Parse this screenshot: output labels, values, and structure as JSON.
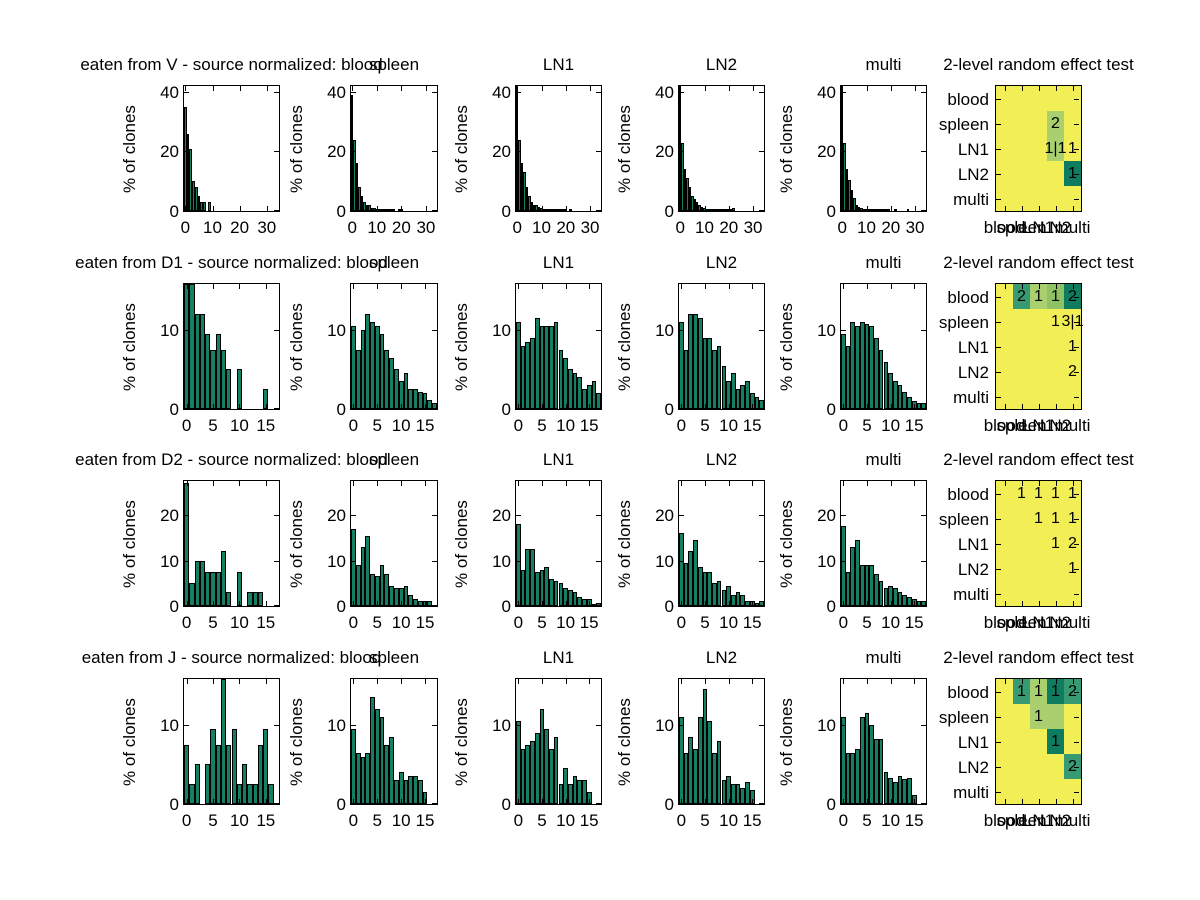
{
  "figure": {
    "col_titles": [
      "spleen",
      "LN1",
      "LN2",
      "multi"
    ],
    "heatmap_title": "2-level random effect test",
    "ylabel": "% of clones",
    "organs": [
      "blood",
      "spleen",
      "LN1",
      "LN2",
      "multi"
    ]
  },
  "colors": {
    "background": "#ffffff",
    "bar_fill": "#147f63",
    "bar_edge": "#000000",
    "heat_yellow": "#f2ee55",
    "heat_light": "#a9cf6e",
    "heat_light2": "#8fc264",
    "heat_mid": "#379a72",
    "heat_dark": "#0f7c5f"
  },
  "chart_data": {
    "type": "bar",
    "description": "4x6 grid: clone-size histograms (% of clones) per source organ and 2-level random effect test heatmaps",
    "rows": [
      {
        "sample": "V",
        "title": "eaten from V - source normalized: blood",
        "ylim": [
          0,
          42
        ],
        "yticks": [
          0,
          20,
          40
        ],
        "xticks": [
          0,
          10,
          20,
          30
        ],
        "nbins": 35,
        "histograms": [
          {
            "source": "blood",
            "values": [
              35,
              26,
              21,
              10,
              8,
              5,
              3,
              3,
              0,
              3
            ]
          },
          {
            "source": "spleen",
            "values": [
              39,
              24,
              16,
              8,
              5,
              3,
              2,
              2,
              1,
              1,
              0.6,
              0.5,
              0.4,
              0.3,
              0.3,
              0.2,
              0.2,
              0.2,
              0,
              0.3,
              0.4
            ]
          },
          {
            "source": "LN1",
            "values": [
              42,
              24,
              16,
              13,
              8,
              5,
              3,
              2,
              2,
              1.5,
              1,
              0.8,
              0.6,
              0.5,
              0.4,
              0.3,
              0.3,
              0.2,
              0.2,
              0.2,
              0.6,
              0,
              0.3
            ]
          },
          {
            "source": "LN2",
            "values": [
              42,
              23,
              14,
              11,
              8,
              5,
              4,
              3,
              2,
              1.5,
              1,
              0.8,
              0.6,
              0.5,
              0.4,
              0.6,
              0.3,
              0.2,
              0.2,
              0.3,
              0.5,
              0.8,
              1
            ]
          },
          {
            "source": "multi",
            "values": [
              42,
              23,
              14,
              10.5,
              7,
              4.5,
              2,
              1.5,
              1,
              0.8,
              0.5,
              0.4,
              0.3,
              0.2,
              0.2,
              0.2,
              0.1,
              0.1,
              0.1,
              0.1,
              0,
              0,
              0.2,
              0,
              0,
              0,
              0,
              0.3
            ]
          }
        ],
        "heatmap": {
          "cells": [
            {
              "r": 1,
              "c": 3,
              "bg": "light",
              "label": "2"
            },
            {
              "r": 2,
              "c": 3,
              "bg": "light",
              "label": "1|1"
            },
            {
              "r": 2,
              "c": 4,
              "bg": "",
              "label": "1"
            },
            {
              "r": 3,
              "c": 4,
              "bg": "dark",
              "label": "1"
            }
          ]
        }
      },
      {
        "sample": "D1",
        "title": "eaten from D1 - source normalized: blood",
        "ylim": [
          0,
          15.8
        ],
        "yticks": [
          0,
          10
        ],
        "xticks": [
          0,
          5,
          10,
          15
        ],
        "nbins": 18,
        "histograms": [
          {
            "source": "blood",
            "values": [
              17,
              17,
              12,
              12,
              9.5,
              7.5,
              9.5,
              7.5,
              5,
              0,
              5,
              0,
              0,
              0,
              0,
              2.5
            ]
          },
          {
            "source": "spleen",
            "values": [
              10.5,
              7.5,
              10,
              12,
              11,
              10.5,
              9.5,
              7.5,
              6.5,
              5,
              3.5,
              4.5,
              2.5,
              2.5,
              2.2,
              2,
              1.2,
              0.8
            ]
          },
          {
            "source": "LN1",
            "values": [
              11,
              8,
              8.5,
              9,
              11.5,
              10.5,
              10.5,
              10.5,
              11,
              7.5,
              6.5,
              5,
              4.5,
              4,
              2.5,
              3,
              3.5,
              2
            ]
          },
          {
            "source": "LN2",
            "values": [
              11,
              7.5,
              12,
              12,
              11.5,
              9,
              9,
              7.5,
              8,
              5.5,
              3.5,
              4.5,
              2.5,
              3,
              3.5,
              2,
              1.5,
              1.2
            ]
          },
          {
            "source": "multi",
            "values": [
              9.5,
              8,
              11,
              10.5,
              11,
              10.8,
              10.5,
              9,
              7.5,
              6,
              4.5,
              3.5,
              3,
              2.2,
              1.5,
              1,
              0.8,
              0.8
            ]
          }
        ],
        "heatmap": {
          "cells": [
            {
              "r": 0,
              "c": 1,
              "bg": "mid",
              "label": "2"
            },
            {
              "r": 0,
              "c": 2,
              "bg": "light",
              "label": "1"
            },
            {
              "r": 0,
              "c": 3,
              "bg": "light2",
              "label": "1"
            },
            {
              "r": 0,
              "c": 4,
              "bg": "dark",
              "label": "2"
            },
            {
              "r": 1,
              "c": 3,
              "bg": "",
              "label": "1"
            },
            {
              "r": 1,
              "c": 4,
              "bg": "",
              "label": "3|1"
            },
            {
              "r": 2,
              "c": 4,
              "bg": "",
              "label": "1"
            },
            {
              "r": 3,
              "c": 4,
              "bg": "",
              "label": "2"
            }
          ]
        }
      },
      {
        "sample": "D2",
        "title": "eaten from D2 - source normalized: blood",
        "ylim": [
          0,
          27.5
        ],
        "yticks": [
          0,
          10,
          20
        ],
        "xticks": [
          0,
          5,
          10,
          15
        ],
        "nbins": 18,
        "histograms": [
          {
            "source": "blood",
            "values": [
              27,
              5,
              10,
              10,
              7.5,
              7.5,
              7.5,
              12,
              3,
              0,
              7.5,
              0,
              3,
              3,
              3
            ]
          },
          {
            "source": "spleen",
            "values": [
              17,
              9,
              13,
              15.5,
              7,
              6.5,
              9,
              7,
              4.5,
              4,
              4,
              4.5,
              2.5,
              1.5,
              1.2,
              1.2,
              1
            ]
          },
          {
            "source": "LN1",
            "values": [
              18,
              8,
              12.5,
              12.5,
              7.5,
              8,
              8.5,
              6,
              5.5,
              5,
              4,
              3.5,
              3,
              2,
              1.5,
              1.5,
              0.5,
              0.7
            ]
          },
          {
            "source": "LN2",
            "values": [
              16,
              9.5,
              12,
              14.5,
              8.5,
              7.5,
              7.5,
              5,
              5.5,
              3.5,
              4.5,
              2.5,
              3,
              2.5,
              1.2,
              1,
              0.7,
              1
            ]
          },
          {
            "source": "multi",
            "values": [
              17.5,
              7.5,
              13,
              14.5,
              9,
              9,
              9,
              7,
              5.5,
              4,
              4.5,
              4,
              3,
              2.5,
              2,
              1.5,
              1,
              1
            ]
          }
        ],
        "heatmap": {
          "cells": [
            {
              "r": 0,
              "c": 1,
              "bg": "",
              "label": "1"
            },
            {
              "r": 0,
              "c": 2,
              "bg": "",
              "label": "1"
            },
            {
              "r": 0,
              "c": 3,
              "bg": "",
              "label": "1"
            },
            {
              "r": 0,
              "c": 4,
              "bg": "",
              "label": "1"
            },
            {
              "r": 1,
              "c": 2,
              "bg": "",
              "label": "1"
            },
            {
              "r": 1,
              "c": 3,
              "bg": "",
              "label": "1"
            },
            {
              "r": 1,
              "c": 4,
              "bg": "",
              "label": "1"
            },
            {
              "r": 2,
              "c": 3,
              "bg": "",
              "label": "1"
            },
            {
              "r": 2,
              "c": 4,
              "bg": "",
              "label": "2"
            },
            {
              "r": 3,
              "c": 4,
              "bg": "",
              "label": "1"
            }
          ]
        }
      },
      {
        "sample": "J",
        "title": "eaten from J - source normalized: blood",
        "ylim": [
          0,
          15.8
        ],
        "yticks": [
          0,
          10
        ],
        "xticks": [
          0,
          5,
          10,
          15
        ],
        "nbins": 18,
        "histograms": [
          {
            "source": "blood",
            "values": [
              7.5,
              2.5,
              5,
              0,
              5,
              9.5,
              7.5,
              15.8,
              7.5,
              9.5,
              2.5,
              5,
              2.5,
              2.5,
              7.5,
              9.5,
              2.5
            ]
          },
          {
            "source": "spleen",
            "values": [
              9.5,
              6.5,
              6,
              6.5,
              13.5,
              12,
              11,
              7.5,
              8.5,
              3,
              4,
              3,
              3.5,
              3.5,
              3,
              1.5
            ]
          },
          {
            "source": "LN1",
            "values": [
              10.5,
              7,
              7.5,
              8,
              9,
              12,
              9.5,
              7,
              8.5,
              2.5,
              4.5,
              2.5,
              3.5,
              3,
              3,
              1.5
            ]
          },
          {
            "source": "LN2",
            "values": [
              11,
              6.5,
              8.5,
              7,
              11,
              14.5,
              10.5,
              6.5,
              8,
              3,
              3.5,
              2.5,
              2.5,
              2,
              2.8,
              1.8
            ]
          },
          {
            "source": "multi",
            "values": [
              11,
              6.5,
              6.5,
              7,
              11,
              11.5,
              10,
              8.2,
              8.2,
              4,
              3.3,
              2.8,
              3.5,
              3.2,
              3.3,
              1.2
            ]
          }
        ],
        "heatmap": {
          "cells": [
            {
              "r": 0,
              "c": 1,
              "bg": "mid",
              "label": "1"
            },
            {
              "r": 0,
              "c": 2,
              "bg": "light",
              "label": "1"
            },
            {
              "r": 0,
              "c": 3,
              "bg": "dark",
              "label": "1"
            },
            {
              "r": 0,
              "c": 4,
              "bg": "mid",
              "label": "2"
            },
            {
              "r": 1,
              "c": 2,
              "bg": "light",
              "label": "1"
            },
            {
              "r": 1,
              "c": 3,
              "bg": "light",
              "label": ""
            },
            {
              "r": 2,
              "c": 3,
              "bg": "dark",
              "label": "1"
            },
            {
              "r": 3,
              "c": 4,
              "bg": "mid",
              "label": "2"
            }
          ]
        }
      }
    ]
  }
}
